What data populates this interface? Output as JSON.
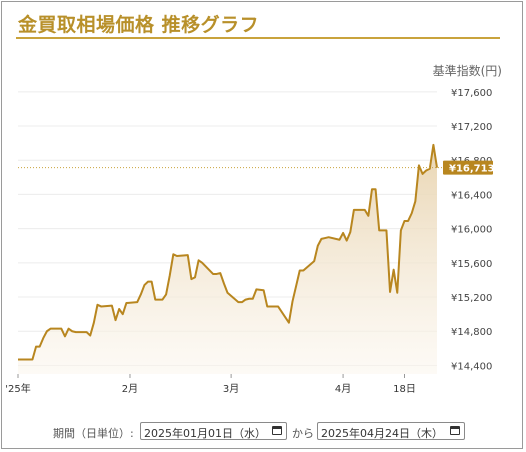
{
  "title": "金買取相場価格 推移グラフ",
  "unit_label": "基準指数(円)",
  "colors": {
    "accent": "#b8902a",
    "line": "#b8861f",
    "fill_top": "#e8d3ae",
    "grid": "#ececec"
  },
  "controls": {
    "period_label": "期間（日単位）:",
    "start_date": "2025年01月01日（水）",
    "connector": "から",
    "end_date": "2025年04月24日（木）",
    "calendar_icon": "calendar-icon"
  },
  "chart_data": {
    "type": "area",
    "ylabel": "基準指数(円)",
    "ylim": [
      14300,
      17750
    ],
    "yticks": [
      14400,
      14800,
      15200,
      15600,
      16000,
      16400,
      16800,
      17200,
      17600
    ],
    "ytick_labels": [
      "¥14,400",
      "¥14,800",
      "¥15,200",
      "¥15,600",
      "¥16,000",
      "¥16,400",
      "¥16,800",
      "¥17,200",
      "¥17,600"
    ],
    "xlim": [
      "2025-01-01",
      "2025-04-24"
    ],
    "xticks": [
      {
        "date": "2025-01-01",
        "label": "'25年"
      },
      {
        "date": "2025-02-01",
        "label": "2月"
      },
      {
        "date": "2025-03-01",
        "label": "3月"
      },
      {
        "date": "2025-04-01",
        "label": "4月"
      },
      {
        "date": "2025-04-18",
        "label": "18日"
      }
    ],
    "current_value_label": "¥16,713",
    "current_value": 16713,
    "series": [
      {
        "values": [
          [
            "2025-01-01",
            14470
          ],
          [
            "2025-01-05",
            14470
          ],
          [
            "2025-01-06",
            14620
          ],
          [
            "2025-01-07",
            14620
          ],
          [
            "2025-01-08",
            14720
          ],
          [
            "2025-01-09",
            14800
          ],
          [
            "2025-01-10",
            14830
          ],
          [
            "2025-01-13",
            14830
          ],
          [
            "2025-01-14",
            14740
          ],
          [
            "2025-01-15",
            14830
          ],
          [
            "2025-01-16",
            14800
          ],
          [
            "2025-01-17",
            14790
          ],
          [
            "2025-01-20",
            14790
          ],
          [
            "2025-01-21",
            14750
          ],
          [
            "2025-01-22",
            14900
          ],
          [
            "2025-01-23",
            15110
          ],
          [
            "2025-01-24",
            15090
          ],
          [
            "2025-01-27",
            15100
          ],
          [
            "2025-01-28",
            14930
          ],
          [
            "2025-01-29",
            15060
          ],
          [
            "2025-01-30",
            15000
          ],
          [
            "2025-01-31",
            15130
          ],
          [
            "2025-02-03",
            15140
          ],
          [
            "2025-02-04",
            15230
          ],
          [
            "2025-02-05",
            15340
          ],
          [
            "2025-02-06",
            15380
          ],
          [
            "2025-02-07",
            15380
          ],
          [
            "2025-02-08",
            15170
          ],
          [
            "2025-02-10",
            15170
          ],
          [
            "2025-02-11",
            15230
          ],
          [
            "2025-02-12",
            15450
          ],
          [
            "2025-02-13",
            15700
          ],
          [
            "2025-02-14",
            15680
          ],
          [
            "2025-02-17",
            15690
          ],
          [
            "2025-02-18",
            15410
          ],
          [
            "2025-02-19",
            15430
          ],
          [
            "2025-02-20",
            15630
          ],
          [
            "2025-02-21",
            15600
          ],
          [
            "2025-02-24",
            15470
          ],
          [
            "2025-02-25",
            15470
          ],
          [
            "2025-02-26",
            15480
          ],
          [
            "2025-02-27",
            15360
          ],
          [
            "2025-02-28",
            15250
          ],
          [
            "2025-03-03",
            15140
          ],
          [
            "2025-03-04",
            15140
          ],
          [
            "2025-03-05",
            15170
          ],
          [
            "2025-03-06",
            15180
          ],
          [
            "2025-03-07",
            15180
          ],
          [
            "2025-03-08",
            15290
          ],
          [
            "2025-03-10",
            15280
          ],
          [
            "2025-03-11",
            15090
          ],
          [
            "2025-03-14",
            15090
          ],
          [
            "2025-03-17",
            14900
          ],
          [
            "2025-03-18",
            15150
          ],
          [
            "2025-03-19",
            15330
          ],
          [
            "2025-03-20",
            15510
          ],
          [
            "2025-03-21",
            15510
          ],
          [
            "2025-03-24",
            15620
          ],
          [
            "2025-03-25",
            15800
          ],
          [
            "2025-03-26",
            15880
          ],
          [
            "2025-03-27",
            15890
          ],
          [
            "2025-03-28",
            15900
          ],
          [
            "2025-03-31",
            15870
          ],
          [
            "2025-04-01",
            15950
          ],
          [
            "2025-04-02",
            15860
          ],
          [
            "2025-04-03",
            15960
          ],
          [
            "2025-04-04",
            16220
          ],
          [
            "2025-04-07",
            16220
          ],
          [
            "2025-04-08",
            16150
          ],
          [
            "2025-04-09",
            16460
          ],
          [
            "2025-04-10",
            16460
          ],
          [
            "2025-04-11",
            15980
          ],
          [
            "2025-04-13",
            15980
          ],
          [
            "2025-04-14",
            15260
          ],
          [
            "2025-04-15",
            15520
          ],
          [
            "2025-04-16",
            15250
          ],
          [
            "2025-04-17",
            15980
          ],
          [
            "2025-04-18",
            16090
          ],
          [
            "2025-04-19",
            16090
          ],
          [
            "2025-04-20",
            16180
          ],
          [
            "2025-04-21",
            16320
          ],
          [
            "2025-04-22",
            16740
          ],
          [
            "2025-04-23",
            16640
          ],
          [
            "2025-04-24",
            16680
          ],
          [
            "2025-04-25",
            16700
          ],
          [
            "2025-04-26",
            16980
          ],
          [
            "2025-04-27",
            16713
          ]
        ]
      }
    ]
  }
}
